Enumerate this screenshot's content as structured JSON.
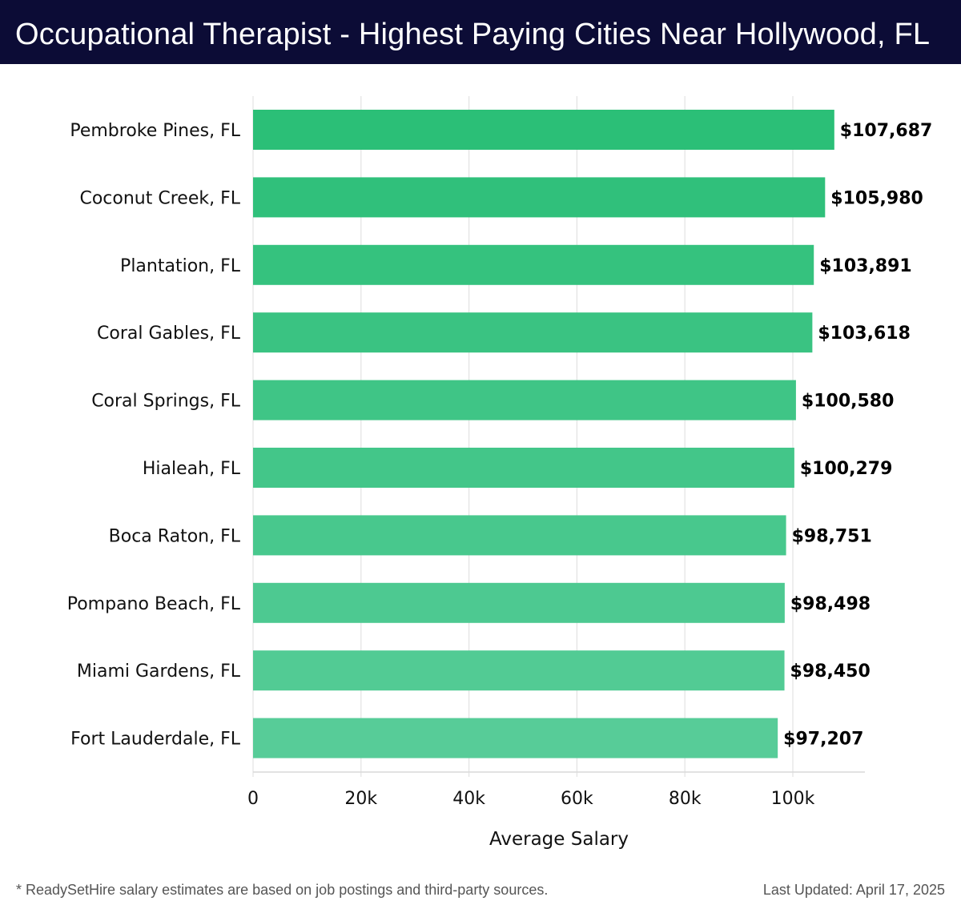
{
  "header": {
    "title": "Occupational Therapist - Highest Paying Cities Near Hollywood, FL"
  },
  "footer": {
    "note": "* ReadySetHire salary estimates are based on job postings and third-party sources.",
    "updated": "Last Updated: April 17, 2025"
  },
  "colors": {
    "header_bg": "#0c0c36",
    "bar_top": "#2bbf77",
    "bar_bottom": "#57cc98"
  },
  "chart_data": {
    "type": "bar",
    "orientation": "horizontal",
    "title": "Occupational Therapist - Highest Paying Cities Near Hollywood, FL",
    "xlabel": "Average Salary",
    "ylabel": "",
    "xlim": [
      0,
      113000
    ],
    "grid": true,
    "categories": [
      "Pembroke Pines, FL",
      "Coconut Creek, FL",
      "Plantation, FL",
      "Coral Gables, FL",
      "Coral Springs, FL",
      "Hialeah, FL",
      "Boca Raton, FL",
      "Pompano Beach, FL",
      "Miami Gardens, FL",
      "Fort Lauderdale, FL"
    ],
    "values": [
      107687,
      105980,
      103891,
      103618,
      100580,
      100279,
      98751,
      98498,
      98450,
      97207
    ],
    "value_labels": [
      "$107,687",
      "$105,980",
      "$103,891",
      "$103,618",
      "$100,580",
      "$100,279",
      "$98,751",
      "$98,498",
      "$98,450",
      "$97,207"
    ],
    "ticks": [
      0,
      20000,
      40000,
      60000,
      80000,
      100000
    ],
    "tick_labels": [
      "0",
      "20k",
      "40k",
      "60k",
      "80k",
      "100k"
    ]
  }
}
